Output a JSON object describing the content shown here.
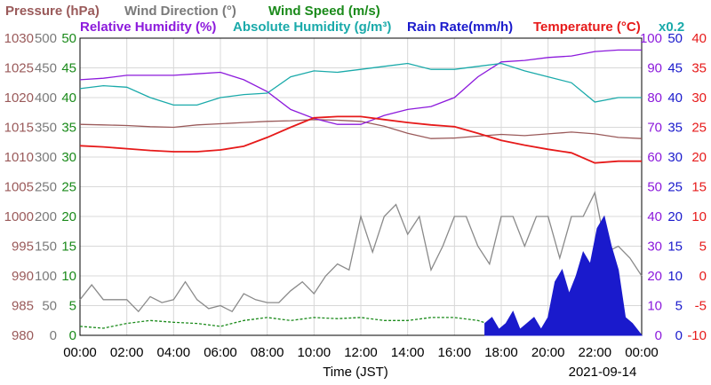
{
  "chart_data": {
    "type": "line",
    "date": "2021-09-14",
    "xlabel": "Time (JST)",
    "x_ticks": [
      "00:00",
      "02:00",
      "04:00",
      "06:00",
      "08:00",
      "10:00",
      "12:00",
      "14:00",
      "16:00",
      "18:00",
      "20:00",
      "22:00",
      "00:00"
    ],
    "legend_row1": [
      {
        "text": "Pressure (hPa)",
        "color": "#9a5a5a"
      },
      {
        "text": "Wind Direction (°)",
        "color": "#7a7a7a"
      },
      {
        "text": "Wind Speed (m/s)",
        "color": "#1a8a1a"
      }
    ],
    "legend_row2": [
      {
        "text": "Relative Humidity (%)",
        "color": "#8c1adc"
      },
      {
        "text": "Absolute Humidity (g/m³)",
        "color": "#1aaaaa"
      },
      {
        "text": "Rain Rate(mm/h)",
        "color": "#1a1acc"
      },
      {
        "text": "Temperature (°C)",
        "color": "#e61a1a"
      },
      {
        "text": "x0.2",
        "color": "#1aaaaa"
      }
    ],
    "axes": {
      "pressure": {
        "color": "#9a5a5a",
        "ticks": [
          980,
          985,
          990,
          995,
          1000,
          1005,
          1010,
          1015,
          1020,
          1025,
          1030
        ],
        "ylim": [
          980,
          1030
        ]
      },
      "wind_direction": {
        "color": "#7a7a7a",
        "ticks": [
          0,
          50,
          100,
          150,
          200,
          250,
          300,
          350,
          400,
          450,
          500
        ],
        "ylim": [
          0,
          500
        ]
      },
      "wind_speed": {
        "color": "#1a8a1a",
        "ticks": [
          0,
          5,
          10,
          15,
          20,
          25,
          30,
          35,
          40,
          45,
          50
        ],
        "ylim": [
          0,
          50
        ]
      },
      "humidity": {
        "color": "#8c1adc",
        "ticks": [
          0,
          10,
          20,
          30,
          40,
          50,
          60,
          70,
          80,
          90,
          100
        ],
        "ylim": [
          0,
          100
        ]
      },
      "rain_rate": {
        "color": "#1a1acc",
        "ticks": [
          0,
          5,
          10,
          15,
          20,
          25,
          30,
          35,
          40,
          45,
          50
        ],
        "ylim": [
          0,
          50
        ]
      },
      "temperature": {
        "color": "#e61a1a",
        "ticks": [
          -10,
          -5,
          0,
          5,
          10,
          15,
          20,
          25,
          30,
          35,
          40
        ],
        "ylim": [
          -10,
          40
        ]
      }
    },
    "series": [
      {
        "name": "Pressure (hPa)",
        "axis": "pressure",
        "color": "#9a5a5a",
        "x": [
          0,
          1,
          2,
          3,
          4,
          5,
          6,
          7,
          8,
          9,
          10,
          11,
          12,
          13,
          14,
          15,
          16,
          17,
          18,
          19,
          20,
          21,
          22,
          23,
          24
        ],
        "y": [
          1015.5,
          1015.4,
          1015.3,
          1015.1,
          1015.0,
          1015.4,
          1015.6,
          1015.8,
          1016.0,
          1016.1,
          1016.3,
          1016.2,
          1016.0,
          1015.2,
          1014.0,
          1013.1,
          1013.2,
          1013.5,
          1013.8,
          1013.6,
          1013.9,
          1014.2,
          1013.9,
          1013.3,
          1013.1
        ]
      },
      {
        "name": "Relative Humidity (%)",
        "axis": "humidity",
        "color": "#8c1adc",
        "x": [
          0,
          1,
          2,
          3,
          4,
          5,
          6,
          7,
          8,
          9,
          10,
          11,
          12,
          13,
          14,
          15,
          16,
          17,
          18,
          19,
          20,
          21,
          22,
          23,
          24
        ],
        "y": [
          86,
          86.5,
          87.5,
          87.5,
          87.5,
          88,
          88.5,
          86,
          82,
          76,
          73,
          71,
          71,
          74,
          76,
          77,
          80,
          87,
          92,
          92.5,
          93.5,
          94,
          95.5,
          96,
          96
        ]
      },
      {
        "name": "Absolute Humidity (g/m³)",
        "axis": "humidity",
        "color": "#1aaaaa",
        "x": [
          0,
          1,
          2,
          3,
          4,
          5,
          6,
          7,
          8,
          9,
          10,
          11,
          12,
          13,
          14,
          15,
          16,
          17,
          18,
          19,
          20,
          21,
          22,
          23,
          24
        ],
        "y": [
          83,
          84,
          83.5,
          80,
          77.5,
          77.5,
          80,
          81,
          81.5,
          87,
          89,
          88.5,
          89.5,
          90.5,
          91.5,
          89.5,
          89.5,
          90.5,
          91.5,
          89,
          87,
          85,
          78.5,
          80,
          80
        ]
      },
      {
        "name": "Temperature (°C)",
        "axis": "temperature",
        "color": "#e61a1a",
        "x": [
          0,
          1,
          2,
          3,
          4,
          5,
          6,
          7,
          8,
          9,
          10,
          11,
          12,
          13,
          14,
          15,
          16,
          17,
          18,
          19,
          20,
          21,
          22,
          23,
          24
        ],
        "y": [
          21.9,
          21.7,
          21.4,
          21.1,
          20.9,
          20.9,
          21.2,
          21.8,
          23.3,
          25.0,
          26.6,
          26.8,
          26.8,
          26.3,
          25.8,
          25.4,
          25.1,
          24.0,
          22.8,
          22.0,
          21.3,
          20.7,
          19.0,
          19.3,
          19.3
        ]
      },
      {
        "name": "Wind Direction (°)",
        "axis": "wind_direction",
        "color": "#8a8a8a",
        "x": [
          0,
          0.5,
          1,
          1.5,
          2,
          2.5,
          3,
          3.5,
          4,
          4.5,
          5,
          5.5,
          6,
          6.5,
          7,
          7.5,
          8,
          8.5,
          9,
          9.5,
          10,
          10.5,
          11,
          11.5,
          12,
          12.5,
          13,
          13.5,
          14,
          14.5,
          15,
          15.5,
          16,
          16.5,
          17,
          17.5,
          18,
          18.5,
          19,
          19.5,
          20,
          20.5,
          21,
          21.5,
          22,
          22.5,
          23,
          23.5,
          24
        ],
        "y": [
          60,
          85,
          60,
          60,
          60,
          40,
          65,
          55,
          60,
          90,
          60,
          45,
          50,
          40,
          70,
          60,
          55,
          55,
          75,
          90,
          70,
          100,
          120,
          110,
          200,
          140,
          200,
          220,
          170,
          200,
          110,
          150,
          200,
          200,
          150,
          120,
          200,
          200,
          150,
          200,
          200,
          130,
          200,
          200,
          240,
          140,
          150,
          130,
          100
        ]
      },
      {
        "name": "Wind Speed (m/s)",
        "axis": "wind_speed",
        "color": "#1a8a1a",
        "x": [
          0,
          1,
          2,
          3,
          4,
          5,
          6,
          7,
          8,
          9,
          10,
          11,
          12,
          13,
          14,
          15,
          16,
          17,
          17.4
        ],
        "y": [
          1.5,
          1.2,
          2.0,
          2.5,
          2.2,
          2.0,
          1.5,
          2.5,
          3.0,
          2.5,
          3.0,
          2.8,
          3.0,
          2.5,
          2.5,
          3.0,
          3.0,
          2.5,
          2.0
        ]
      },
      {
        "name": "Rain Rate(mm/h)",
        "axis": "rain_rate",
        "color": "#1a1acc",
        "x": [
          17.3,
          17.6,
          17.9,
          18.2,
          18.5,
          18.8,
          19.1,
          19.4,
          19.7,
          20.0,
          20.3,
          20.6,
          20.9,
          21.2,
          21.5,
          21.8,
          22.1,
          22.4,
          22.7,
          23.0,
          23.3,
          23.6,
          24.0
        ],
        "y": [
          2,
          3,
          1,
          2,
          4,
          1,
          2,
          3,
          1,
          3,
          9,
          11,
          7,
          10,
          14,
          12,
          18,
          20,
          15,
          11,
          3,
          2,
          0
        ]
      }
    ]
  }
}
